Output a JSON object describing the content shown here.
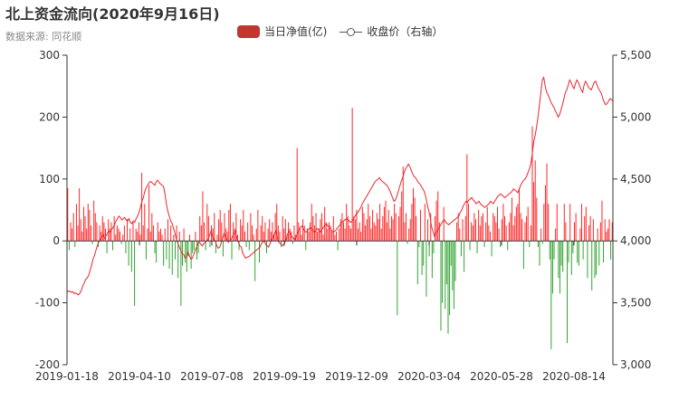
{
  "header": {
    "title": "北上资金流向(2020年9月16日)",
    "subtitle": "数据来源: 同花顺"
  },
  "legend": {
    "bar_label": "当日净值(亿)",
    "line_label": "收盘价（右轴）",
    "icon_bar": "rounded-rect",
    "icon_line": "line-circle"
  },
  "colors": {
    "positive": "#ff1f1f",
    "negative": "#2aa02a",
    "line": "#e8262d",
    "legend_bar": "#c23531",
    "axis": "#333333"
  },
  "chart_data": {
    "type": "bar",
    "title": "北上资金流向(2020年9月16日)",
    "x_start": "2019-01-18",
    "x_tick_labels": [
      "2019-01-18",
      "2019-04-10",
      "2019-07-08",
      "2019-09-19",
      "2019-12-09",
      "2020-03-04",
      "2020-05-28",
      "2020-08-14"
    ],
    "y_left_ticks": [
      "300",
      "200",
      "100",
      "0",
      "-100",
      "-200"
    ],
    "y_right_ticks": [
      "5,500",
      "5,000",
      "4,500",
      "4,000",
      "3,500",
      "3,000"
    ],
    "ylim_left": [
      -200,
      300
    ],
    "ylim_right": [
      3000,
      5500
    ],
    "grid": false,
    "legend_position": "top-center",
    "series": [
      {
        "name": "当日净值(亿)",
        "type": "bar",
        "values": [
          85,
          -15,
          30,
          20,
          45,
          -10,
          60,
          25,
          85,
          35,
          15,
          55,
          40,
          20,
          60,
          50,
          25,
          -5,
          65,
          45,
          30,
          -10,
          25,
          15,
          40,
          30,
          20,
          -20,
          35,
          20,
          30,
          -15,
          40,
          10,
          25,
          20,
          15,
          -5,
          10,
          25,
          -20,
          35,
          -40,
          20,
          -50,
          30,
          -105,
          20,
          15,
          30,
          10,
          110,
          25,
          60,
          -30,
          20,
          90,
          15,
          45,
          25,
          -20,
          -35,
          30,
          15,
          20,
          10,
          -40,
          20,
          -30,
          35,
          -45,
          25,
          -55,
          10,
          -30,
          25,
          -60,
          15,
          -105,
          -40,
          20,
          -35,
          -50,
          -25,
          10,
          -45,
          -20,
          -15,
          15,
          -30,
          -20,
          40,
          25,
          80,
          30,
          -15,
          60,
          40,
          -10,
          25,
          20,
          45,
          -20,
          10,
          35,
          50,
          30,
          -25,
          45,
          20,
          15,
          50,
          60,
          -30,
          30,
          20,
          45,
          10,
          -15,
          35,
          25,
          50,
          15,
          -10,
          30,
          -15,
          45,
          25,
          10,
          -65,
          20,
          50,
          -35,
          25,
          40,
          15,
          30,
          -20,
          20,
          35,
          15,
          30,
          10,
          45,
          60,
          25,
          15,
          -10,
          40,
          20,
          35,
          10,
          30,
          20,
          15,
          -5,
          25,
          10,
          150,
          30,
          20,
          10,
          35,
          25,
          -15,
          20,
          15,
          30,
          60,
          40,
          25,
          45,
          15,
          20,
          35,
          45,
          10,
          55,
          30,
          20,
          30,
          25,
          15,
          40,
          10,
          15,
          -15,
          20,
          35,
          45,
          30,
          20,
          60,
          40,
          25,
          20,
          215,
          40,
          35,
          50,
          20,
          30,
          15,
          55,
          45,
          25,
          35,
          60,
          40,
          20,
          50,
          30,
          25,
          45,
          35,
          60,
          20,
          40,
          55,
          65,
          30,
          50,
          20,
          40,
          35,
          60,
          45,
          -120,
          40,
          55,
          80,
          120,
          30,
          45,
          -5,
          20,
          35,
          60,
          85,
          70,
          40,
          -70,
          -10,
          50,
          -55,
          -40,
          60,
          -90,
          35,
          -25,
          45,
          -60,
          -20,
          40,
          65,
          80,
          30,
          -145,
          -100,
          55,
          -110,
          -70,
          -150,
          -120,
          -40,
          -80,
          -110,
          -65,
          30,
          45,
          20,
          -25,
          35,
          -50,
          40,
          140,
          60,
          -15,
          30,
          25,
          45,
          35,
          -20,
          50,
          25,
          40,
          45,
          -10,
          30,
          55,
          25,
          15,
          -25,
          45,
          40,
          30,
          55,
          20,
          -10,
          35,
          60,
          40,
          25,
          -15,
          30,
          45,
          70,
          25,
          40,
          55,
          60,
          85,
          45,
          35,
          -45,
          30,
          40,
          55,
          -10,
          25,
          185,
          95,
          130,
          70,
          -10,
          -40,
          20,
          -5,
          60,
          90,
          125,
          60,
          -30,
          -175,
          -85,
          -30,
          20,
          60,
          -60,
          -85,
          -40,
          -50,
          60,
          30,
          -165,
          -35,
          60,
          -55,
          -20,
          30,
          45,
          -35,
          -40,
          20,
          60,
          -30,
          40,
          55,
          -60,
          25,
          40,
          -80,
          35,
          -60,
          -55,
          20,
          -40,
          30,
          65,
          -35,
          35,
          15,
          20,
          35,
          -30,
          30
        ]
      },
      {
        "name": "收盘价（右轴）",
        "type": "line",
        "axis": "right",
        "values": [
          3600,
          3590,
          3595,
          3585,
          3590,
          3575,
          3580,
          3570,
          3565,
          3580,
          3600,
          3640,
          3660,
          3690,
          3700,
          3720,
          3760,
          3800,
          3850,
          3880,
          3920,
          3960,
          3990,
          4010,
          4030,
          4050,
          4020,
          4040,
          4060,
          4080,
          4070,
          4090,
          4110,
          4130,
          4160,
          4180,
          4200,
          4190,
          4170,
          4180,
          4190,
          4170,
          4160,
          4180,
          4150,
          4140,
          4160,
          4150,
          4180,
          4200,
          4230,
          4270,
          4320,
          4350,
          4400,
          4430,
          4450,
          4470,
          4480,
          4470,
          4460,
          4450,
          4480,
          4490,
          4470,
          4460,
          4450,
          4440,
          4380,
          4300,
          4240,
          4200,
          4160,
          4140,
          4100,
          4060,
          4010,
          3980,
          3950,
          3920,
          3900,
          3890,
          3860,
          3870,
          3910,
          3880,
          3850,
          3860,
          3890,
          3920,
          3950,
          3980,
          3990,
          3970,
          3960,
          3980,
          3990,
          4000,
          4010,
          4050,
          4080,
          4040,
          4010,
          4000,
          3960,
          3940,
          3950,
          3980,
          4020,
          4060,
          4040,
          4010,
          3990,
          4000,
          4010,
          4040,
          4060,
          4080,
          4020,
          3990,
          3960,
          3950,
          3900,
          3880,
          3860,
          3870,
          3870,
          3880,
          3890,
          3900,
          3910,
          3920,
          3930,
          3940,
          3950,
          3980,
          3990,
          4000,
          3970,
          3960,
          3950,
          3980,
          4010,
          4030,
          4060,
          4080,
          4030,
          3990,
          3980,
          3970,
          3960,
          3980,
          4010,
          4050,
          4080,
          4060,
          4040,
          4020,
          4010,
          4030,
          4060,
          4090,
          4110,
          4120,
          4100,
          4080,
          4070,
          4080,
          4100,
          4110,
          4090,
          4080,
          4070,
          4090,
          4100,
          4080,
          4070,
          4090,
          4110,
          4130,
          4140,
          4120,
          4110,
          4090,
          4080,
          4070,
          4080,
          4090,
          4110,
          4120,
          4140,
          4150,
          4160,
          4170,
          4180,
          4170,
          4160,
          4150,
          4160,
          4180,
          4200,
          4220,
          4230,
          4250,
          4270,
          4300,
          4320,
          4340,
          4360,
          4380,
          4400,
          4420,
          4440,
          4460,
          4480,
          4490,
          4500,
          4510,
          4490,
          4480,
          4470,
          4460,
          4450,
          4430,
          4410,
          4380,
          4350,
          4320,
          4330,
          4360,
          4400,
          4440,
          4480,
          4510,
          4550,
          4580,
          4600,
          4620,
          4600,
          4570,
          4540,
          4520,
          4510,
          4490,
          4470,
          4460,
          4440,
          4420,
          4400,
          4360,
          4300,
          4250,
          4200,
          4120,
          4080,
          4040,
          4060,
          4080,
          4100,
          4120,
          4140,
          4160,
          4170,
          4150,
          4140,
          4130,
          4140,
          4150,
          4160,
          4170,
          4180,
          4190,
          4200,
          4230,
          4250,
          4280,
          4300,
          4320,
          4310,
          4330,
          4340,
          4350,
          4330,
          4320,
          4300,
          4310,
          4320,
          4300,
          4290,
          4280,
          4270,
          4280,
          4290,
          4300,
          4320,
          4310,
          4300,
          4320,
          4340,
          4360,
          4370,
          4380,
          4370,
          4360,
          4350,
          4360,
          4370,
          4380,
          4390,
          4400,
          4420,
          4410,
          4400,
          4390,
          4420,
          4450,
          4470,
          4490,
          4500,
          4520,
          4550,
          4580,
          4620,
          4700,
          4800,
          4850,
          4920,
          5000,
          5100,
          5200,
          5300,
          5320,
          5250,
          5200,
          5180,
          5150,
          5120,
          5100,
          5080,
          5050,
          5030,
          5000,
          5020,
          5060,
          5100,
          5150,
          5200,
          5220,
          5260,
          5300,
          5280,
          5250,
          5230,
          5270,
          5300,
          5280,
          5250,
          5220,
          5200,
          5260,
          5290,
          5270,
          5240,
          5230,
          5220,
          5250,
          5280,
          5290,
          5260,
          5230,
          5210,
          5190,
          5150,
          5120,
          5100,
          5110,
          5130,
          5150,
          5140,
          5130
        ]
      }
    ]
  }
}
